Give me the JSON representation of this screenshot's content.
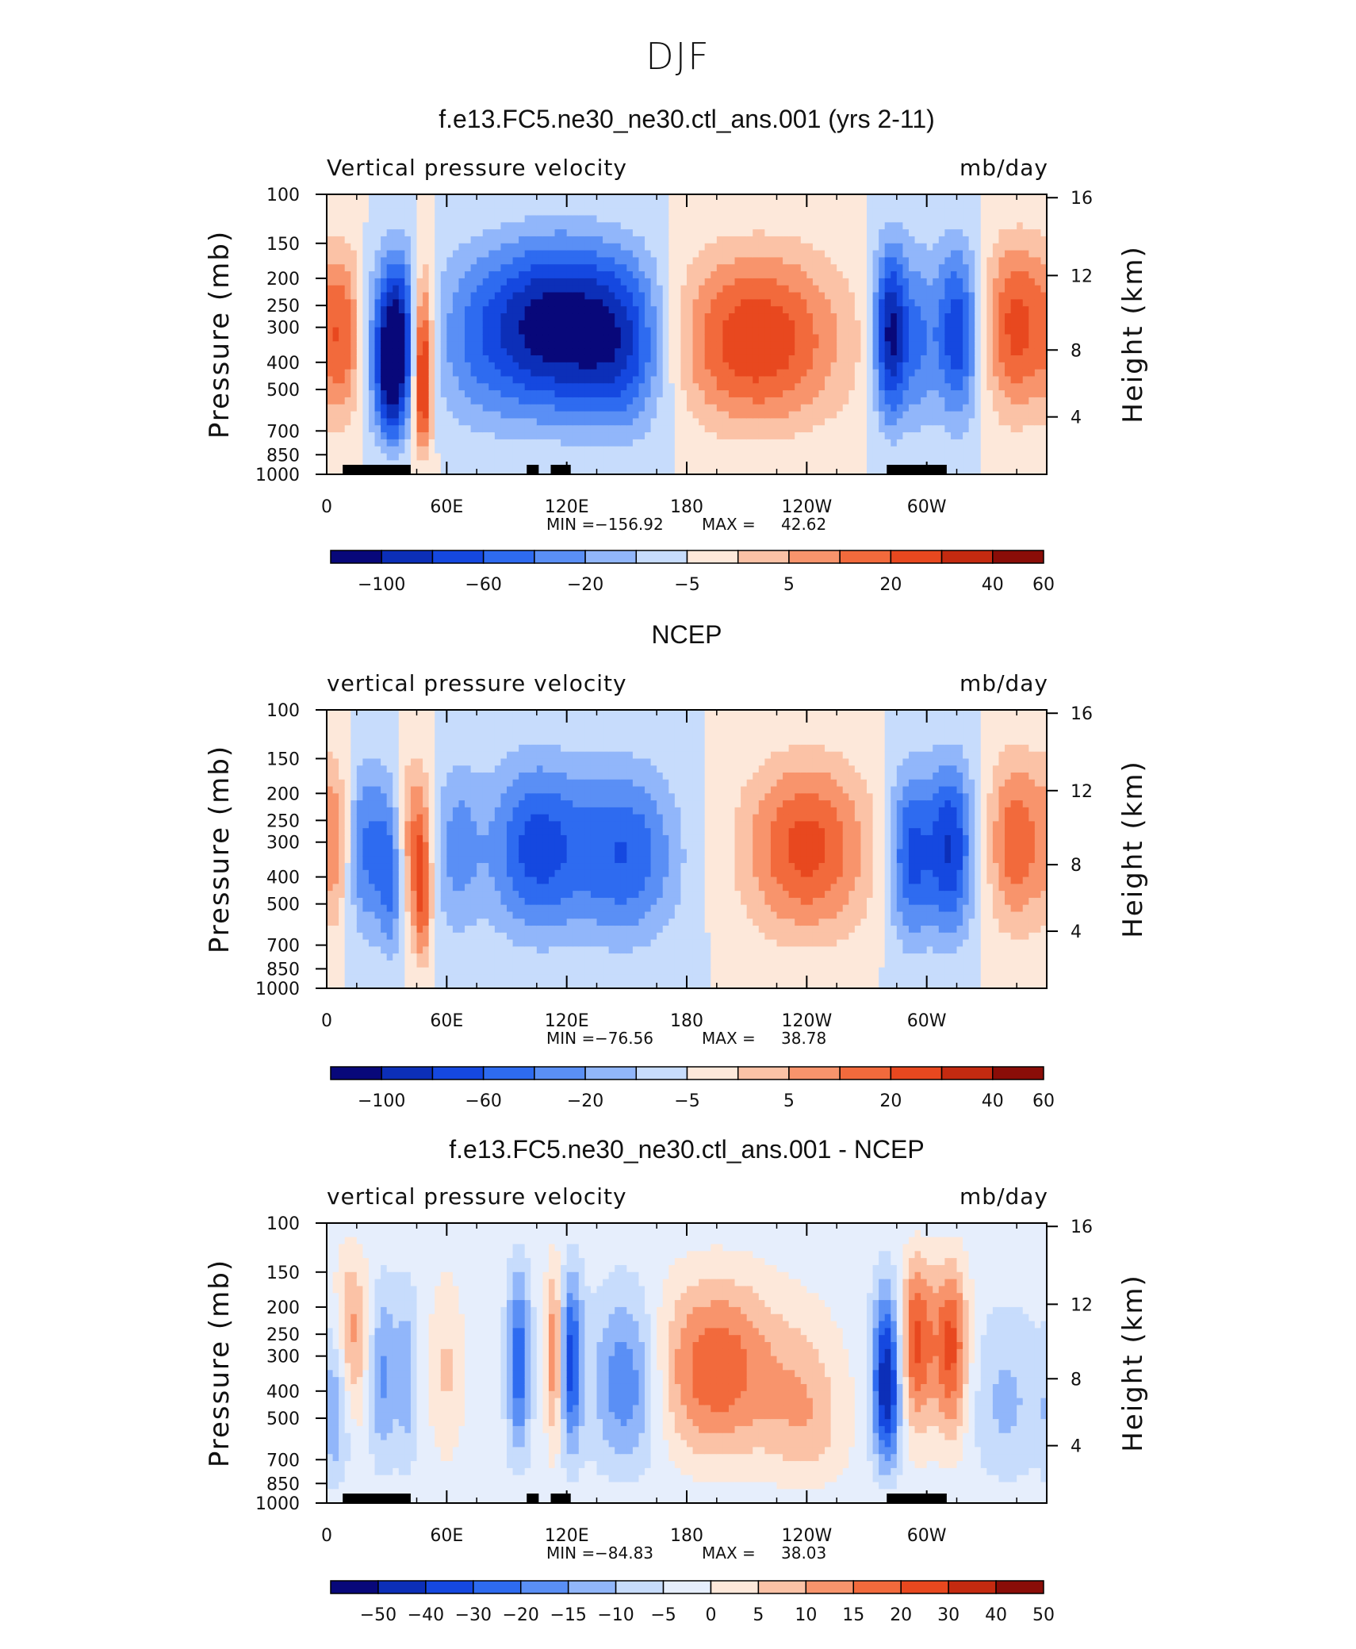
{
  "figure": {
    "title": "DJF"
  },
  "colors": {
    "vel_scale": [
      "#08087a",
      "#0c2fb8",
      "#1548e0",
      "#2e6bf0",
      "#5a8ff5",
      "#91b6fa",
      "#c7dcfc",
      "#fde8da",
      "#fbc2a6",
      "#f8946c",
      "#f26a3c",
      "#e8481f",
      "#c42a10",
      "#8a0d08"
    ],
    "diff_scale": [
      "#08087a",
      "#0c2fb8",
      "#1548e0",
      "#2e6bf0",
      "#5a8ff5",
      "#91b6fa",
      "#c7dcfc",
      "#e6eefc",
      "#fde8da",
      "#fbc2a6",
      "#f8946c",
      "#f26a3c",
      "#e8481f",
      "#c42a10",
      "#8a0d08"
    ]
  },
  "chart_data": [
    {
      "type": "heatmap",
      "title": "f.e13.FC5.ne30_ne30.ctl_ans.001 (yrs 2-11)",
      "left_label": "Vertical pressure velocity",
      "right_label": "mb/day",
      "ylabel": "Pressure (mb)",
      "ylabel_right": "Height (km)",
      "x_ticks": [
        "0",
        "60E",
        "120E",
        "180",
        "120W",
        "60W"
      ],
      "y_ticks": [
        "100",
        "150",
        "200",
        "250",
        "300",
        "400",
        "500",
        "700",
        "850",
        "1000"
      ],
      "y_ticks_right": [
        "16",
        "12",
        "8",
        "4"
      ],
      "stats": {
        "min_label": "MIN =",
        "min": "−156.92",
        "max_label": "MAX =",
        "max": "42.62"
      },
      "colorbar_labels": [
        "−100",
        "−60",
        "−20",
        "−5",
        "5",
        "20",
        "40",
        "60"
      ],
      "features": [
        {
          "lon": 10,
          "p": 0.55,
          "w": 8,
          "v": 8
        },
        {
          "lon": 22,
          "p": 0.6,
          "w": 10,
          "v": -5
        },
        {
          "lon": 32,
          "p": 0.7,
          "w": 5,
          "v": -12
        },
        {
          "lon": 40,
          "p": 0.55,
          "w": 5,
          "v": -7
        },
        {
          "lon": 47,
          "p": 0.6,
          "w": 5,
          "v": 6
        },
        {
          "lon": 48,
          "p": 0.9,
          "w": 3,
          "v": 12
        },
        {
          "lon": 75,
          "p": 0.55,
          "w": 18,
          "v": -4
        },
        {
          "lon": 115,
          "p": 0.45,
          "w": 24,
          "v": -12
        },
        {
          "lon": 150,
          "p": 0.6,
          "w": 16,
          "v": -7
        },
        {
          "lon": 215,
          "p": 0.55,
          "w": 30,
          "v": 9
        },
        {
          "lon": 282,
          "p": 0.5,
          "w": 6,
          "v": -12
        },
        {
          "lon": 296,
          "p": 0.55,
          "w": 6,
          "v": -5
        },
        {
          "lon": 315,
          "p": 0.5,
          "w": 8,
          "v": -9
        },
        {
          "lon": 345,
          "p": 0.45,
          "w": 12,
          "v": 8
        }
      ],
      "land_mask": [
        [
          8,
          42
        ],
        [
          100,
          106
        ],
        [
          112,
          122
        ],
        [
          280,
          310
        ]
      ]
    },
    {
      "type": "heatmap",
      "title": "NCEP",
      "left_label": "vertical pressure velocity",
      "right_label": "mb/day",
      "ylabel": "Pressure (mb)",
      "ylabel_right": "Height (km)",
      "x_ticks": [
        "0",
        "60E",
        "120E",
        "180",
        "120W",
        "60W"
      ],
      "y_ticks": [
        "100",
        "150",
        "200",
        "250",
        "300",
        "400",
        "500",
        "700",
        "850",
        "1000"
      ],
      "y_ticks_right": [
        "16",
        "12",
        "8",
        "4"
      ],
      "stats": {
        "min_label": "MIN =",
        "min": "−76.56",
        "max_label": "MAX =",
        "max": "38.78"
      },
      "colorbar_labels": [
        "−100",
        "−60",
        "−20",
        "−5",
        "5",
        "20",
        "40",
        "60"
      ],
      "features": [
        {
          "lon": 5,
          "p": 0.45,
          "w": 6,
          "v": 5
        },
        {
          "lon": 20,
          "p": 0.5,
          "w": 9,
          "v": -6
        },
        {
          "lon": 33,
          "p": 0.75,
          "w": 5,
          "v": -6
        },
        {
          "lon": 43,
          "p": 0.5,
          "w": 6,
          "v": 6
        },
        {
          "lon": 48,
          "p": 0.9,
          "w": 3,
          "v": 8
        },
        {
          "lon": 65,
          "p": 0.5,
          "w": 8,
          "v": -4
        },
        {
          "lon": 105,
          "p": 0.5,
          "w": 18,
          "v": -8
        },
        {
          "lon": 150,
          "p": 0.55,
          "w": 18,
          "v": -7
        },
        {
          "lon": 240,
          "p": 0.5,
          "w": 22,
          "v": 8
        },
        {
          "lon": 292,
          "p": 0.55,
          "w": 8,
          "v": -8
        },
        {
          "lon": 312,
          "p": 0.5,
          "w": 8,
          "v": -9
        },
        {
          "lon": 345,
          "p": 0.45,
          "w": 10,
          "v": 7
        }
      ],
      "land_mask": []
    },
    {
      "type": "heatmap",
      "title": "f.e13.FC5.ne30_ne30.ctl_ans.001 - NCEP",
      "left_label": "vertical pressure velocity",
      "right_label": "mb/day",
      "ylabel": "Pressure (mb)",
      "ylabel_right": "Height (km)",
      "x_ticks": [
        "0",
        "60E",
        "120E",
        "180",
        "120W",
        "60W"
      ],
      "y_ticks": [
        "100",
        "150",
        "200",
        "250",
        "300",
        "400",
        "500",
        "700",
        "850",
        "1000"
      ],
      "y_ticks_right": [
        "16",
        "12",
        "8",
        "4"
      ],
      "stats": {
        "min_label": "MIN =",
        "min": "−84.83",
        "max_label": "MAX =",
        "max": "38.03"
      },
      "colorbar_labels": [
        "−50",
        "−40",
        "−30",
        "−20",
        "−15",
        "−10",
        "−5",
        "0",
        "5",
        "10",
        "15",
        "20",
        "30",
        "40",
        "50"
      ],
      "features": [
        {
          "lon": 5,
          "p": 0.8,
          "w": 5,
          "v": -6
        },
        {
          "lon": 12,
          "p": 0.3,
          "w": 6,
          "v": 6
        },
        {
          "lon": 28,
          "p": 0.6,
          "w": 5,
          "v": -5
        },
        {
          "lon": 40,
          "p": 0.6,
          "w": 4,
          "v": -4
        },
        {
          "lon": 60,
          "p": 0.55,
          "w": 6,
          "v": 3
        },
        {
          "lon": 96,
          "p": 0.5,
          "w": 4,
          "v": -8
        },
        {
          "lon": 114,
          "p": 0.45,
          "w": 3,
          "v": 7
        },
        {
          "lon": 122,
          "p": 0.5,
          "w": 4,
          "v": -9
        },
        {
          "lon": 150,
          "p": 0.65,
          "w": 12,
          "v": -7
        },
        {
          "lon": 195,
          "p": 0.55,
          "w": 22,
          "v": 8
        },
        {
          "lon": 240,
          "p": 0.9,
          "w": 14,
          "v": 6
        },
        {
          "lon": 280,
          "p": 0.65,
          "w": 5,
          "v": -13
        },
        {
          "lon": 295,
          "p": 0.35,
          "w": 6,
          "v": 9
        },
        {
          "lon": 312,
          "p": 0.4,
          "w": 6,
          "v": 9
        },
        {
          "lon": 340,
          "p": 0.8,
          "w": 12,
          "v": -4
        }
      ],
      "land_mask": [
        [
          8,
          42
        ],
        [
          100,
          106
        ],
        [
          112,
          122
        ],
        [
          280,
          310
        ]
      ]
    }
  ]
}
